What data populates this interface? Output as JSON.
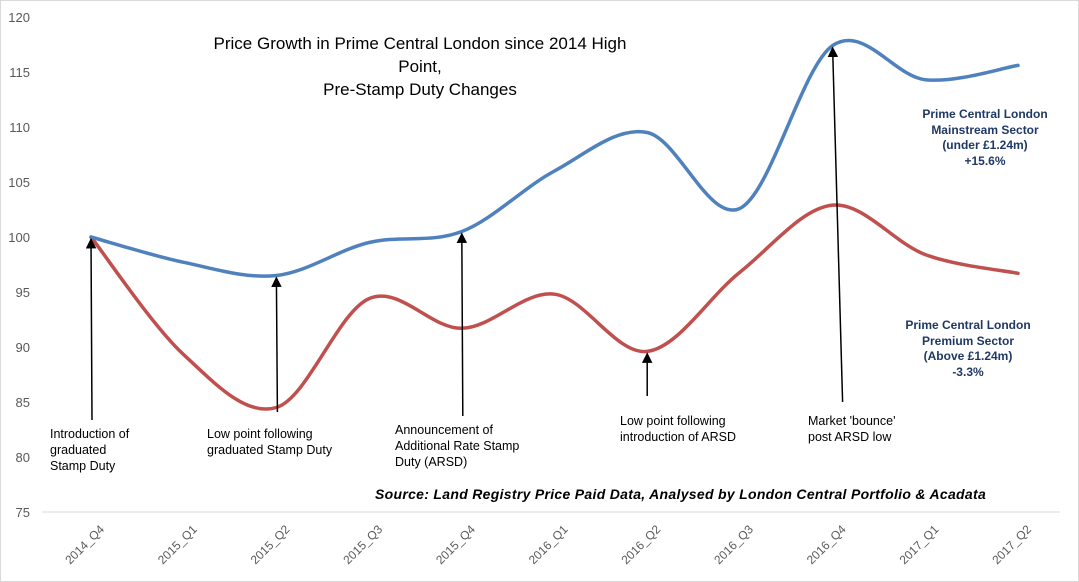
{
  "chart_data": {
    "type": "line",
    "title": "Price Growth in Prime Central London since 2014 High Point, Pre-Stamp Duty Changes",
    "title_lines": [
      "Price Growth in Prime Central London since 2014 High Point,",
      "Pre-Stamp Duty Changes"
    ],
    "categories": [
      "2014_Q4",
      "2015_Q1",
      "2015_Q2",
      "2015_Q3",
      "2015_Q4",
      "2016_Q1",
      "2016_Q2",
      "2016_Q3",
      "2016_Q4",
      "2017_Q1",
      "2017_Q2"
    ],
    "ylim": [
      75,
      120
    ],
    "yticks": [
      75,
      80,
      85,
      90,
      95,
      100,
      105,
      110,
      115,
      120
    ],
    "grid": false,
    "smooth": true,
    "series": [
      {
        "key": "mainstream",
        "color": "#4f81bd",
        "label_lines": [
          "Prime Central London",
          "Mainstream Sector",
          "(under £1.24m)",
          "+15.6%"
        ],
        "values": [
          100,
          97.7,
          96.5,
          99.5,
          100.5,
          106,
          109.5,
          102.6,
          117.4,
          114.3,
          115.6
        ]
      },
      {
        "key": "premium",
        "color": "#c0504d",
        "label_lines": [
          "Prime Central London",
          "Premium Sector",
          "(Above £1.24m)",
          "-3.3%"
        ],
        "values": [
          100,
          89.3,
          84.5,
          94.4,
          91.7,
          94.8,
          89.6,
          96.8,
          102.9,
          98.4,
          96.7
        ]
      }
    ],
    "annotations": [
      {
        "lines": [
          "Introduction of",
          "graduated",
          "Stamp Duty"
        ],
        "category": "2014_Q4",
        "series": "mainstream"
      },
      {
        "lines": [
          "Low point following",
          "graduated Stamp Duty"
        ],
        "category": "2015_Q2",
        "series": "mainstream"
      },
      {
        "lines": [
          "Announcement of",
          "Additional Rate Stamp",
          "Duty (ARSD)"
        ],
        "category": "2015_Q4",
        "series": "mainstream"
      },
      {
        "lines": [
          "Low point following",
          "introduction of ARSD"
        ],
        "category": "2016_Q2",
        "series": "premium"
      },
      {
        "lines": [
          "Market 'bounce'",
          "post ARSD low"
        ],
        "category": "2016_Q4",
        "series": "mainstream"
      }
    ],
    "source": "Source: Land Registry Price Paid Data, Analysed by London Central Portfolio & Acadata"
  }
}
